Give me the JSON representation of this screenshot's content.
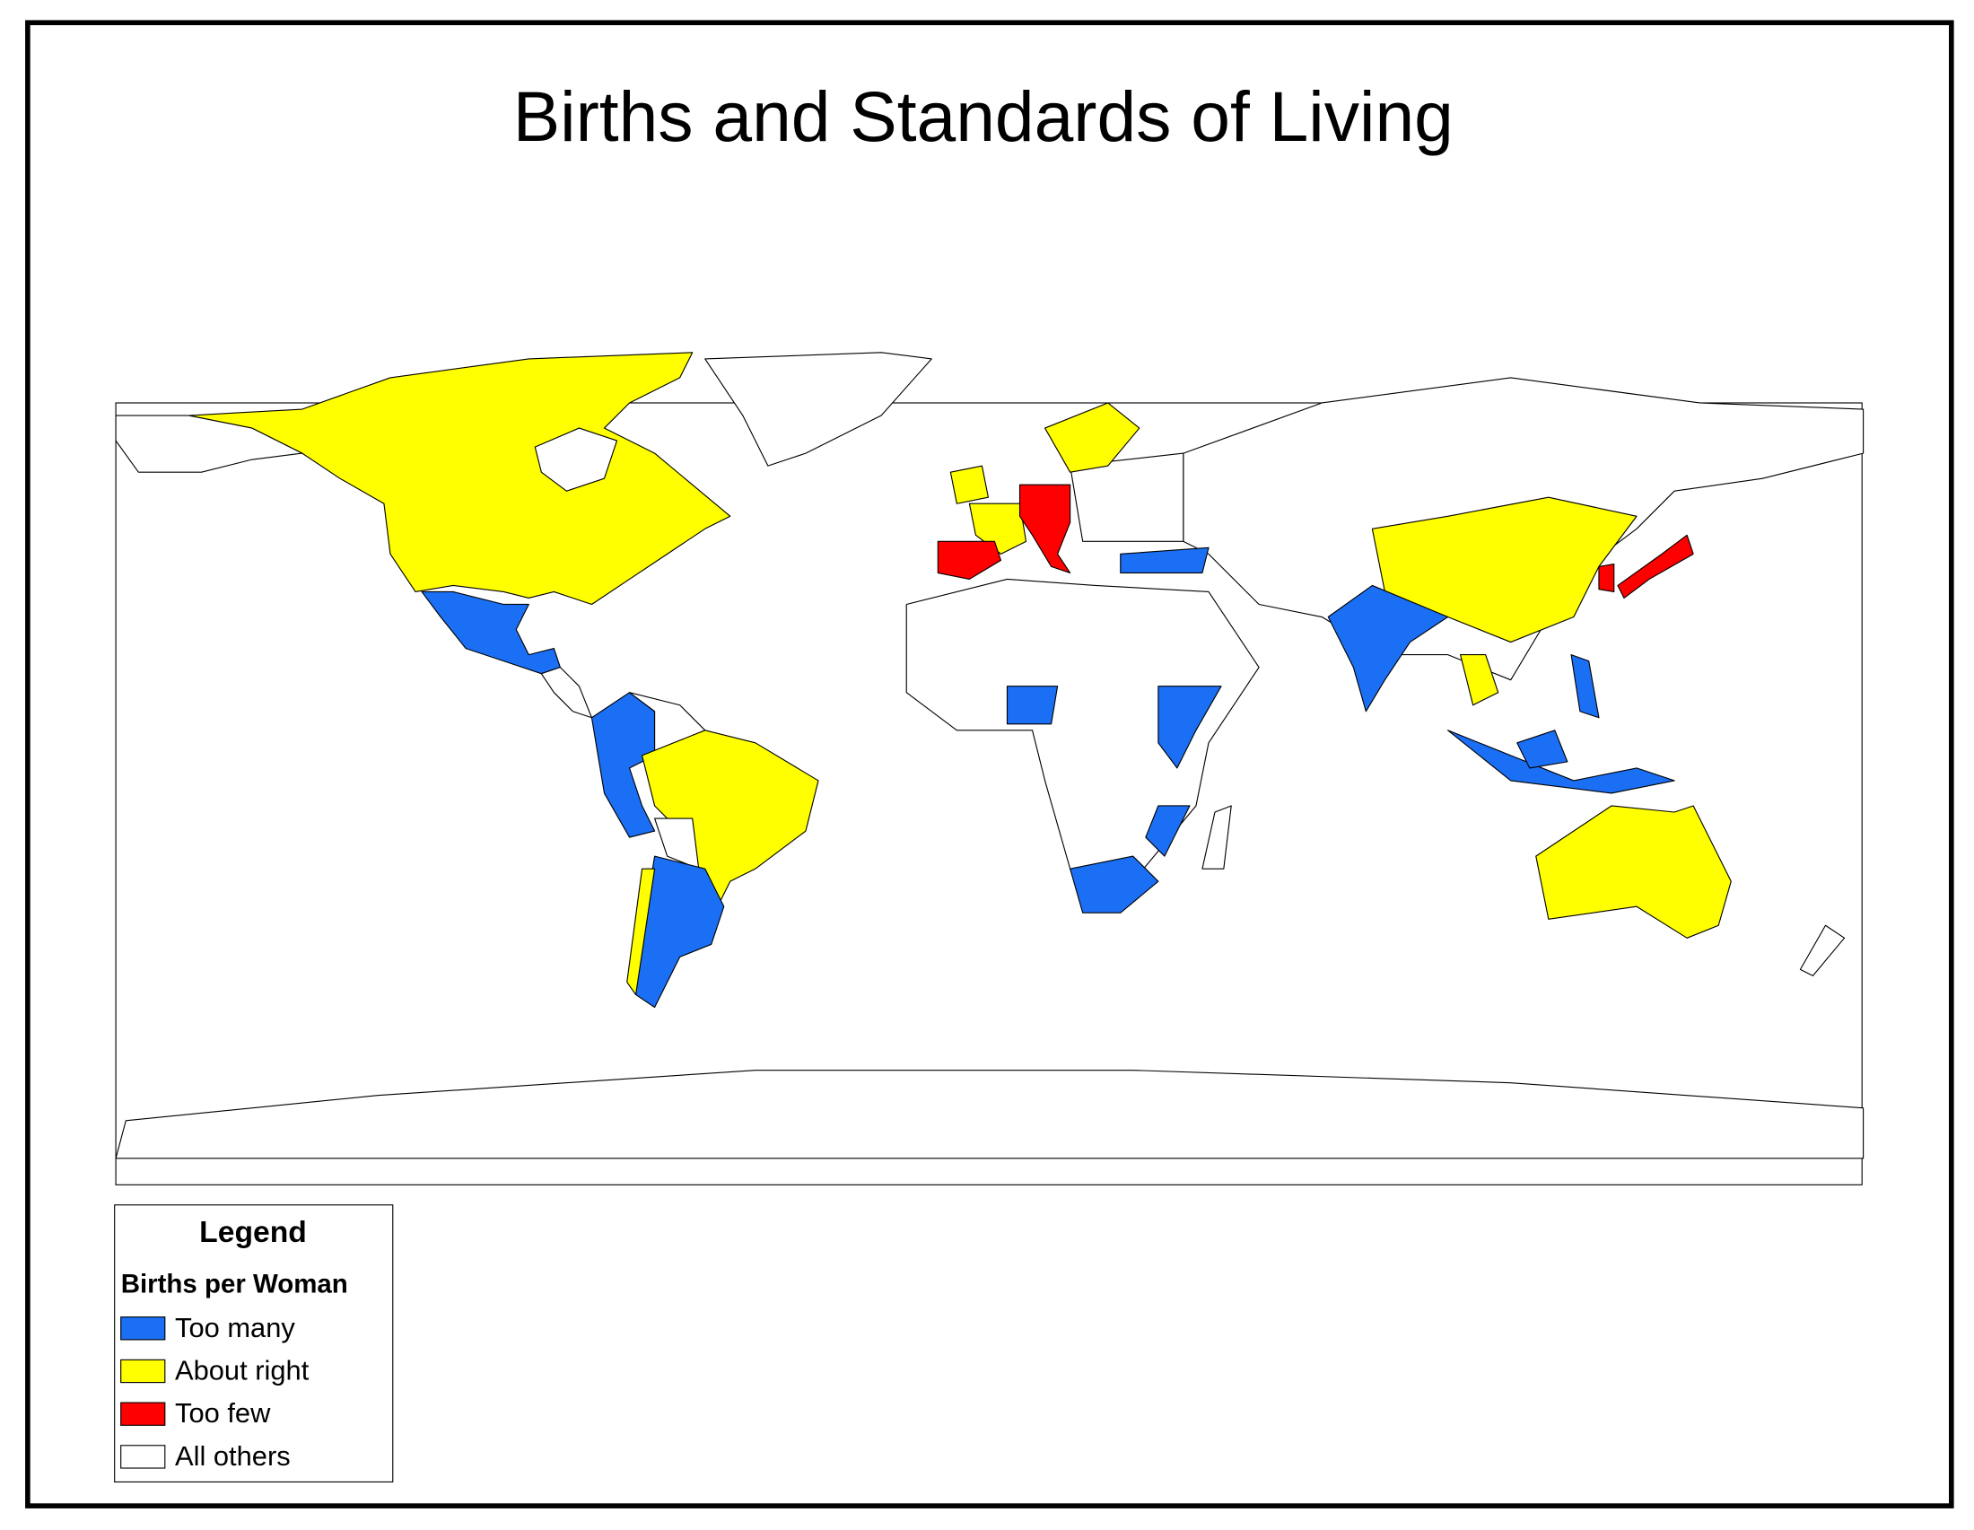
{
  "title": "Births and Standards of Living",
  "legend": {
    "title": "Legend",
    "subtitle": "Births per Woman",
    "items": [
      {
        "label": "Too many",
        "color": "#1a6ff5"
      },
      {
        "label": "About right",
        "color": "#ffff00"
      },
      {
        "label": "Too few",
        "color": "#ff0000"
      },
      {
        "label": "All others",
        "color": "#ffffff"
      }
    ]
  }
}
